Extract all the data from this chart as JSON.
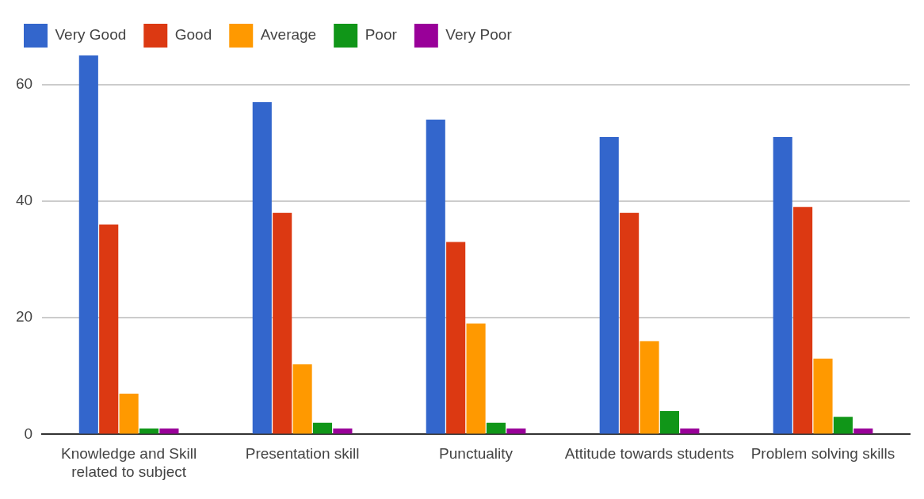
{
  "chart_data": {
    "type": "bar",
    "categories": [
      "Knowledge and Skill related to subject",
      "Presentation skill",
      "Punctuality",
      "Attitude towards students",
      "Problem solving skills"
    ],
    "series": [
      {
        "name": "Very Good",
        "color": "#3366cc",
        "values": [
          65,
          57,
          54,
          51,
          51
        ]
      },
      {
        "name": "Good",
        "color": "#dc3912",
        "values": [
          36,
          38,
          33,
          38,
          39
        ]
      },
      {
        "name": "Average",
        "color": "#ff9900",
        "values": [
          7,
          12,
          19,
          16,
          13
        ]
      },
      {
        "name": "Poor",
        "color": "#109618",
        "values": [
          1,
          2,
          2,
          4,
          3
        ]
      },
      {
        "name": "Very Poor",
        "color": "#990099",
        "values": [
          1,
          1,
          1,
          1,
          1
        ]
      }
    ],
    "ylim": [
      0,
      65
    ],
    "yticks": [
      0,
      20,
      40,
      60
    ],
    "grid": "y",
    "legend": "top left"
  }
}
